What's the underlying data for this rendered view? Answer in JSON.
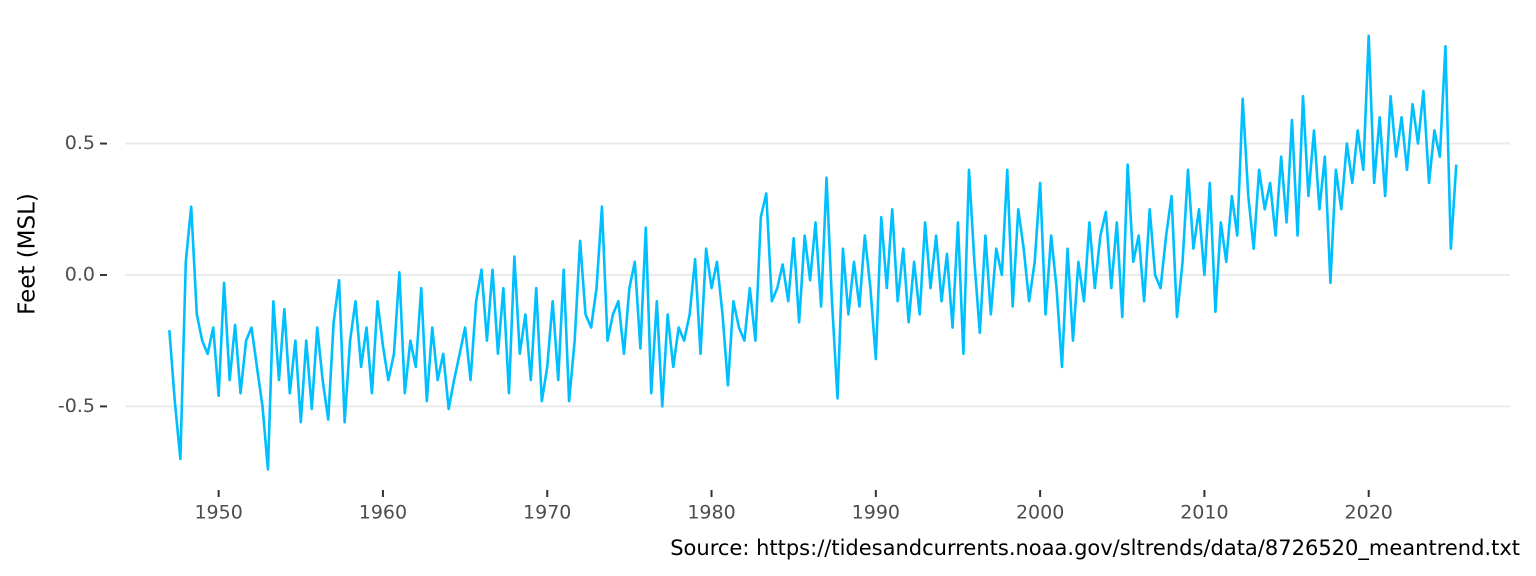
{
  "chart_data": {
    "type": "line",
    "y_label": "Feet (MSL)",
    "caption": "Source: https://tidesandcurrents.noaa.gov/sltrends/data/8726520_meantrend.txt",
    "color": "#00bfff",
    "grid": true,
    "xlim": [
      1944.3,
      2028.6
    ],
    "ylim": [
      -0.78,
      0.97
    ],
    "xticks": [
      1950,
      1960,
      1970,
      1980,
      1990,
      2000,
      2010,
      2020
    ],
    "yticks": [
      -0.5,
      {
        "value": 0,
        "label": "0.0"
      },
      0.5
    ],
    "x": [
      1947,
      1947.33,
      1947.67,
      1948,
      1948.33,
      1948.67,
      1949,
      1949.33,
      1949.67,
      1950,
      1950.33,
      1950.67,
      1951,
      1951.33,
      1951.67,
      1952,
      1952.33,
      1952.67,
      1953,
      1953.33,
      1953.67,
      1954,
      1954.33,
      1954.67,
      1955,
      1955.33,
      1955.67,
      1956,
      1956.33,
      1956.67,
      1957,
      1957.33,
      1957.67,
      1958,
      1958.33,
      1958.67,
      1959,
      1959.33,
      1959.67,
      1960,
      1960.33,
      1960.67,
      1961,
      1961.33,
      1961.67,
      1962,
      1962.33,
      1962.67,
      1963,
      1963.33,
      1963.67,
      1964,
      1964.33,
      1964.67,
      1965,
      1965.33,
      1965.67,
      1966,
      1966.33,
      1966.67,
      1967,
      1967.33,
      1967.67,
      1968,
      1968.33,
      1968.67,
      1969,
      1969.33,
      1969.67,
      1970,
      1970.33,
      1970.67,
      1971,
      1971.33,
      1971.67,
      1972,
      1972.33,
      1972.67,
      1973,
      1973.33,
      1973.67,
      1974,
      1974.33,
      1974.67,
      1975,
      1975.33,
      1975.67,
      1976,
      1976.33,
      1976.67,
      1977,
      1977.33,
      1977.67,
      1978,
      1978.33,
      1978.67,
      1979,
      1979.33,
      1979.67,
      1980,
      1980.33,
      1980.67,
      1981,
      1981.33,
      1981.67,
      1982,
      1982.33,
      1982.67,
      1983,
      1983.33,
      1983.67,
      1984,
      1984.33,
      1984.67,
      1985,
      1985.33,
      1985.67,
      1986,
      1986.33,
      1986.67,
      1987,
      1987.33,
      1987.67,
      1988,
      1988.33,
      1988.67,
      1989,
      1989.33,
      1989.67,
      1990,
      1990.33,
      1990.67,
      1991,
      1991.33,
      1991.67,
      1992,
      1992.33,
      1992.67,
      1993,
      1993.33,
      1993.67,
      1994,
      1994.33,
      1994.67,
      1995,
      1995.33,
      1995.67,
      1996,
      1996.33,
      1996.67,
      1997,
      1997.33,
      1997.67,
      1998,
      1998.33,
      1998.67,
      1999,
      1999.33,
      1999.67,
      2000,
      2000.33,
      2000.67,
      2001,
      2001.33,
      2001.67,
      2002,
      2002.33,
      2002.67,
      2003,
      2003.33,
      2003.67,
      2004,
      2004.33,
      2004.67,
      2005,
      2005.33,
      2005.67,
      2006,
      2006.33,
      2006.67,
      2007,
      2007.33,
      2007.67,
      2008,
      2008.33,
      2008.67,
      2009,
      2009.33,
      2009.67,
      2010,
      2010.33,
      2010.67,
      2011,
      2011.33,
      2011.67,
      2012,
      2012.33,
      2012.67,
      2013,
      2013.33,
      2013.67,
      2014,
      2014.33,
      2014.67,
      2015,
      2015.33,
      2015.67,
      2016,
      2016.33,
      2016.67,
      2017,
      2017.33,
      2017.67,
      2018,
      2018.33,
      2018.67,
      2019,
      2019.33,
      2019.67,
      2020,
      2020.33,
      2020.67,
      2021,
      2021.33,
      2021.67,
      2022,
      2022.33,
      2022.67,
      2023,
      2023.33,
      2023.67,
      2024,
      2024.33,
      2024.67,
      2025,
      2025.33
    ],
    "values": [
      -0.21,
      -0.48,
      -0.7,
      0.05,
      0.26,
      -0.15,
      -0.25,
      -0.3,
      -0.2,
      -0.46,
      -0.03,
      -0.4,
      -0.19,
      -0.45,
      -0.25,
      -0.2,
      -0.35,
      -0.5,
      -0.74,
      -0.1,
      -0.4,
      -0.13,
      -0.45,
      -0.25,
      -0.56,
      -0.25,
      -0.51,
      -0.2,
      -0.4,
      -0.55,
      -0.18,
      -0.02,
      -0.56,
      -0.25,
      -0.1,
      -0.35,
      -0.2,
      -0.45,
      -0.1,
      -0.27,
      -0.4,
      -0.3,
      0.01,
      -0.45,
      -0.25,
      -0.35,
      -0.05,
      -0.48,
      -0.2,
      -0.4,
      -0.3,
      -0.51,
      -0.4,
      -0.3,
      -0.2,
      -0.4,
      -0.1,
      0.02,
      -0.25,
      0.02,
      -0.3,
      -0.05,
      -0.45,
      0.07,
      -0.3,
      -0.15,
      -0.4,
      -0.05,
      -0.48,
      -0.35,
      -0.1,
      -0.4,
      0.02,
      -0.48,
      -0.25,
      0.13,
      -0.15,
      -0.2,
      -0.05,
      0.26,
      -0.25,
      -0.15,
      -0.1,
      -0.3,
      -0.05,
      0.05,
      -0.28,
      0.18,
      -0.45,
      -0.1,
      -0.5,
      -0.15,
      -0.35,
      -0.2,
      -0.25,
      -0.15,
      0.06,
      -0.3,
      0.1,
      -0.05,
      0.05,
      -0.15,
      -0.42,
      -0.1,
      -0.2,
      -0.25,
      -0.05,
      -0.25,
      0.22,
      0.31,
      -0.1,
      -0.05,
      0.04,
      -0.1,
      0.14,
      -0.18,
      0.15,
      -0.02,
      0.2,
      -0.12,
      0.37,
      -0.1,
      -0.47,
      0.1,
      -0.15,
      0.05,
      -0.12,
      0.15,
      -0.05,
      -0.32,
      0.22,
      -0.05,
      0.25,
      -0.1,
      0.1,
      -0.18,
      0.05,
      -0.15,
      0.2,
      -0.05,
      0.15,
      -0.1,
      0.08,
      -0.2,
      0.2,
      -0.3,
      0.4,
      0.05,
      -0.22,
      0.15,
      -0.15,
      0.1,
      0.0,
      0.4,
      -0.12,
      0.25,
      0.1,
      -0.1,
      0.05,
      0.35,
      -0.15,
      0.15,
      -0.05,
      -0.35,
      0.1,
      -0.25,
      0.05,
      -0.1,
      0.2,
      -0.05,
      0.15,
      0.24,
      -0.05,
      0.2,
      -0.16,
      0.42,
      0.05,
      0.15,
      -0.1,
      0.25,
      0.0,
      -0.05,
      0.15,
      0.3,
      -0.16,
      0.05,
      0.4,
      0.1,
      0.25,
      0.0,
      0.35,
      -0.14,
      0.2,
      0.05,
      0.3,
      0.15,
      0.67,
      0.3,
      0.1,
      0.4,
      0.25,
      0.35,
      0.15,
      0.45,
      0.2,
      0.59,
      0.15,
      0.68,
      0.3,
      0.55,
      0.25,
      0.45,
      -0.03,
      0.4,
      0.25,
      0.5,
      0.35,
      0.55,
      0.4,
      0.91,
      0.35,
      0.6,
      0.3,
      0.68,
      0.45,
      0.6,
      0.4,
      0.65,
      0.5,
      0.7,
      0.35,
      0.55,
      0.45,
      0.87,
      0.1,
      0.42
    ]
  }
}
